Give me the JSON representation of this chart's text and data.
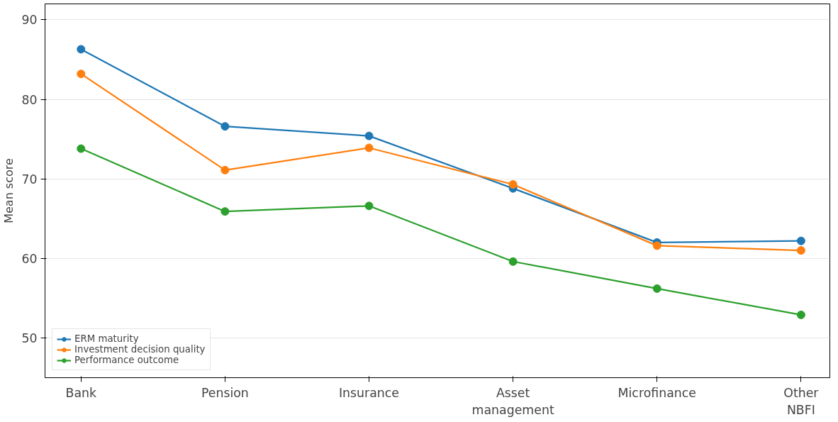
{
  "chart_data": {
    "type": "line",
    "ylabel": "Mean score",
    "categories": [
      "Bank",
      "Pension",
      "Insurance",
      "Asset management",
      "Microfinance",
      "Other NBFI"
    ],
    "series": [
      {
        "name": "ERM maturity",
        "color": "#1f77b4",
        "values": [
          86.3,
          76.6,
          75.4,
          68.8,
          62.0,
          62.2
        ]
      },
      {
        "name": "Investment decision quality",
        "color": "#ff7f0e",
        "values": [
          83.2,
          71.1,
          73.9,
          69.3,
          61.6,
          61.0
        ]
      },
      {
        "name": "Performance outcome",
        "color": "#2ca02c",
        "values": [
          73.8,
          65.9,
          66.6,
          59.6,
          56.2,
          52.9
        ]
      }
    ],
    "ylim": [
      45,
      92
    ],
    "yticks": [
      50,
      60,
      70,
      80,
      90
    ],
    "grid": "y",
    "legend": "bottom left",
    "marker": "circle",
    "line_style": "solid"
  }
}
